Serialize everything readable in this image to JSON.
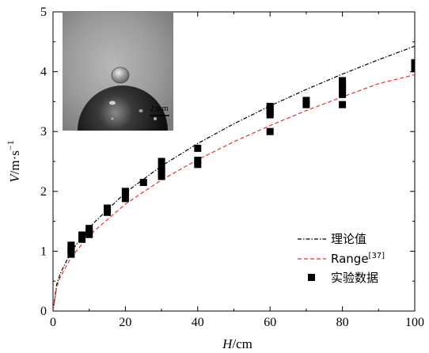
{
  "chart_data": {
    "type": "scatter",
    "xlabel_var": "H",
    "xlabel_unit": "/cm",
    "ylabel_var": "V",
    "ylabel_unit": "/m·s",
    "ylabel_exp": "−1",
    "xlim": [
      0,
      100
    ],
    "ylim": [
      0,
      5
    ],
    "x_ticks": [
      "0",
      "20",
      "40",
      "60",
      "80",
      "100"
    ],
    "y_ticks": [
      "0",
      "1",
      "2",
      "3",
      "4",
      "5"
    ],
    "legend_position": "lower-right",
    "colors": {
      "theory": "#000000",
      "range": "#e8312f",
      "data": "#000000"
    },
    "series": [
      {
        "name": "理论值",
        "kind": "line-dashdot",
        "x": [
          0,
          1,
          2,
          5,
          10,
          20,
          30,
          40,
          50,
          60,
          70,
          80,
          90,
          100
        ],
        "y": [
          0,
          0.443,
          0.626,
          0.99,
          1.4,
          1.98,
          2.425,
          2.8,
          3.13,
          3.429,
          3.704,
          3.96,
          4.2,
          4.427
        ]
      },
      {
        "name": "Range",
        "name_sup": "[37]",
        "kind": "line-dashed",
        "x": [
          0,
          1,
          2,
          5,
          10,
          20,
          30,
          40,
          50,
          60,
          70,
          80,
          90,
          100
        ],
        "y": [
          0,
          0.4,
          0.565,
          0.894,
          1.265,
          1.789,
          2.19,
          2.53,
          2.83,
          3.1,
          3.35,
          3.58,
          3.8,
          3.95
        ]
      },
      {
        "name": "实验数据",
        "kind": "points",
        "x": [
          5,
          5,
          5,
          5,
          8,
          8,
          10,
          10,
          10,
          15,
          15,
          20,
          20,
          20,
          25,
          30,
          30,
          30,
          30,
          40,
          40,
          40,
          60,
          60,
          60,
          60,
          60,
          70,
          70,
          80,
          80,
          80,
          80,
          80,
          80,
          100,
          100,
          100
        ],
        "y": [
          0.95,
          1.0,
          1.05,
          1.1,
          1.2,
          1.27,
          1.28,
          1.33,
          1.38,
          1.65,
          1.72,
          1.88,
          1.95,
          2.0,
          2.15,
          2.25,
          2.32,
          2.38,
          2.5,
          2.45,
          2.52,
          2.72,
          3.0,
          3.28,
          3.32,
          3.38,
          3.42,
          3.45,
          3.52,
          3.45,
          3.62,
          3.7,
          3.75,
          3.8,
          3.85,
          4.05,
          4.1,
          4.15
        ]
      }
    ]
  },
  "inset": {
    "scale_label": "2 mm"
  }
}
